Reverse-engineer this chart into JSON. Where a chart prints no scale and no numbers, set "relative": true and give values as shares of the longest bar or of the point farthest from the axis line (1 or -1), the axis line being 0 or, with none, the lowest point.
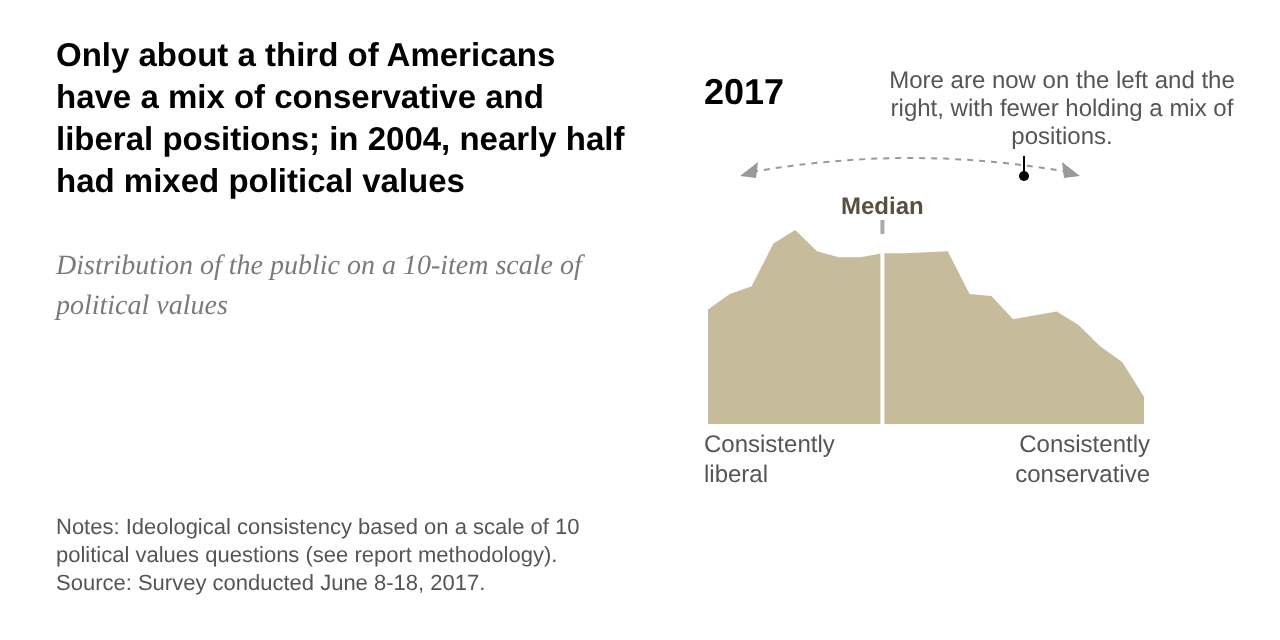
{
  "chart_data": {
    "type": "area",
    "title": "Only about a third of Americans have a mix of conservative and liberal positions; in 2004, nearly half had mixed political values",
    "subtitle": "Distribution of the public on a 10-item scale of political values",
    "relative": true,
    "categories": [
      null,
      null,
      null,
      null,
      null,
      null,
      null,
      null,
      null,
      null,
      null,
      null,
      null,
      null,
      null,
      null,
      null,
      null,
      null,
      null,
      null
    ],
    "series": [
      {
        "color": "#c6bc9c",
        "values": [
          0.59,
          0.67,
          0.71,
          0.93,
          1,
          0.89,
          0.86,
          0.86,
          0.88,
          0.88,
          0.885,
          0.89,
          0.67,
          0.66,
          0.54,
          0.56,
          0.58,
          0.51,
          0.4,
          0.32,
          0.14
        ]
      }
    ],
    "annotations": [
      "Median",
      "2017",
      "More are now on the left and the right, with fewer holding a mix of positions.",
      "Consistently liberal",
      "Consistently conservative",
      "Notes: Ideological consistency based on a scale of 10 political values questions (see report methodology).",
      "Source: Survey conducted June 8-18, 2017."
    ]
  }
}
